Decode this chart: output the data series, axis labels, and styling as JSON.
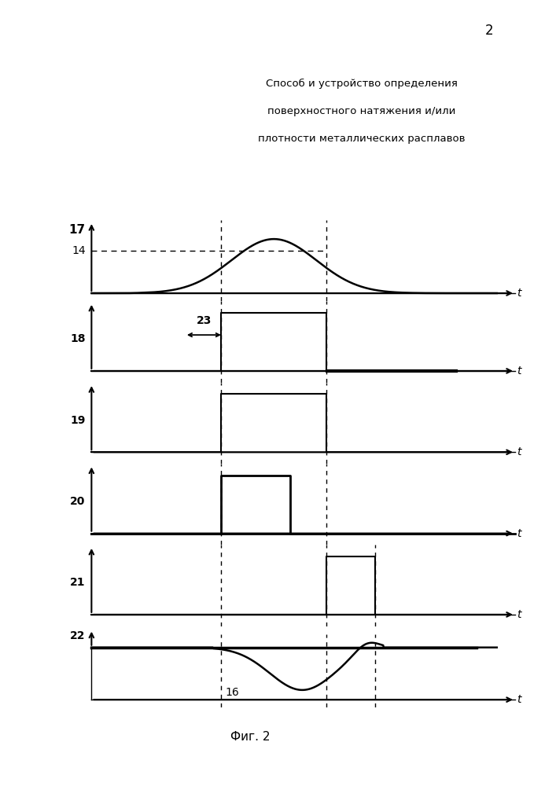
{
  "title_line1": "Способ и устройство определения",
  "title_line2": "поверхностного натяжения и/или",
  "title_line3": "плотности металлических расплавов",
  "page_number": "2",
  "fig_caption": "Фиг. 2",
  "labels": {
    "signal17": "17",
    "level14": "14",
    "signal18": "18",
    "signal19": "19",
    "signal20": "20",
    "signal21": "21",
    "signal22": "22",
    "level16": "16",
    "arrow23": "23"
  },
  "t_label": "t",
  "background_color": "#ffffff",
  "line_color": "#000000"
}
